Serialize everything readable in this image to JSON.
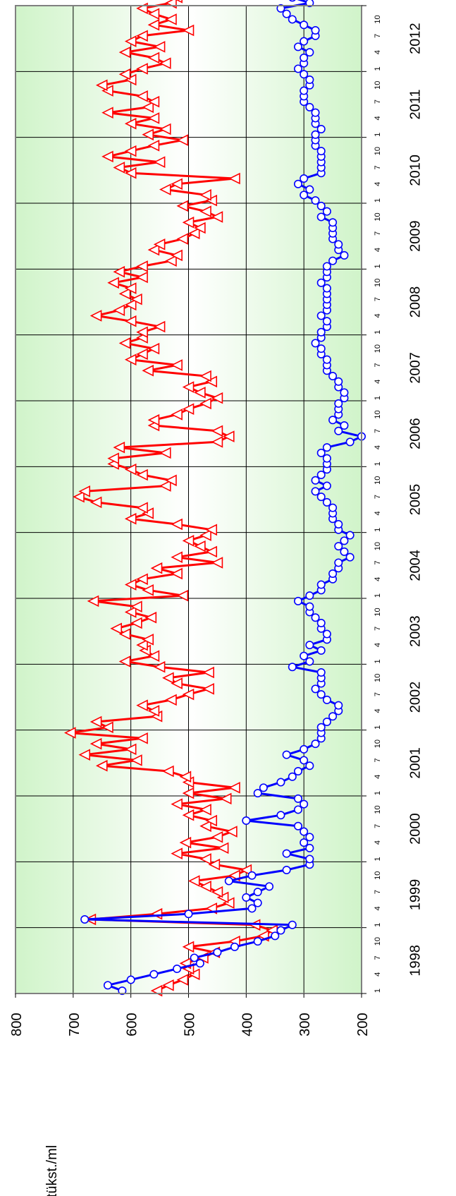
{
  "chart_data": {
    "type": "line",
    "title": "",
    "ylabel": "tükst./ml",
    "ylim": [
      200,
      800
    ],
    "y_ticks": [
      "800",
      "700",
      "600",
      "500",
      "400",
      "300",
      "200"
    ],
    "years": [
      "1998",
      "1999",
      "2000",
      "2001",
      "2002",
      "2003",
      "2004",
      "2005",
      "2006",
      "2007",
      "2008",
      "2009",
      "2010",
      "2011",
      "2012"
    ],
    "month_ticks": [
      "1",
      "4",
      "7",
      "10"
    ],
    "grid": true,
    "legend": "none",
    "colors": {
      "red": "#ff0000",
      "blue": "#0000ff",
      "grid": "#000000",
      "frame": "#808080",
      "band": "#c8f2c0"
    },
    "series": [
      {
        "color": "#ff0000",
        "marker": "triangle",
        "values": [
          555,
          535,
          510,
          490,
          500,
          505,
          475,
          455,
          500,
          420,
          370,
          355,
          385,
          670,
          555,
          460,
          430,
          440,
          450,
          470,
          490,
          420,
          400,
          455,
          470,
          520,
          440,
          505,
          450,
          425,
          470,
          460,
          500,
          470,
          520,
          435,
          500,
          420,
          500,
          505,
          535,
          650,
          590,
          680,
          600,
          660,
          580,
          705,
          640,
          660,
          555,
          560,
          580,
          530,
          500,
          465,
          520,
          535,
          465,
          550,
          610,
          560,
          575,
          580,
          570,
          610,
          625,
          590,
          565,
          600,
          590,
          665,
          510,
          570,
          600,
          580,
          520,
          555,
          450,
          520,
          460,
          480,
          500,
          470,
          460,
          520,
          600,
          570,
          580,
          660,
          690,
          680,
          540,
          530,
          580,
          600,
          630,
          630,
          540,
          620,
          450,
          430,
          450,
          560,
          560,
          520,
          500,
          470,
          450,
          480,
          500,
          460,
          470,
          570,
          520,
          600,
          580,
          560,
          610,
          580,
          580,
          550,
          600,
          660,
          620,
          600,
          590,
          610,
          600,
          630,
          580,
          620,
          580,
          530,
          520,
          560,
          550,
          510,
          490,
          480,
          500,
          450,
          470,
          510,
          460,
          470,
          540,
          520,
          420,
          600,
          620,
          550,
          640,
          600,
          560,
          510,
          570,
          540,
          600,
          560,
          640,
          570,
          560,
          580,
          640,
          650,
          600,
          610,
          580,
          540,
          560,
          610,
          550,
          600,
          580,
          500,
          560,
          530,
          560,
          580,
          530,
          520,
          540,
          570,
          530,
          580,
          560,
          600,
          560,
          580,
          600,
          580,
          590,
          570,
          560,
          540,
          560,
          560,
          580,
          580,
          560
        ]
      },
      {
        "color": "#0000ff",
        "marker": "circle",
        "values": [
          615,
          640,
          600,
          560,
          520,
          480,
          490,
          450,
          420,
          380,
          350,
          340,
          320,
          680,
          500,
          390,
          380,
          400,
          380,
          360,
          430,
          390,
          330,
          290,
          290,
          330,
          290,
          300,
          290,
          300,
          310,
          400,
          340,
          310,
          300,
          310,
          380,
          370,
          340,
          320,
          310,
          290,
          300,
          330,
          300,
          280,
          270,
          270,
          270,
          260,
          250,
          240,
          240,
          260,
          270,
          280,
          270,
          270,
          270,
          320,
          290,
          300,
          270,
          290,
          260,
          260,
          270,
          270,
          280,
          290,
          290,
          310,
          290,
          270,
          270,
          250,
          250,
          240,
          240,
          220,
          230,
          240,
          230,
          220,
          240,
          240,
          250,
          250,
          250,
          260,
          270,
          280,
          260,
          280,
          270,
          260,
          260,
          260,
          270,
          260,
          220,
          200,
          240,
          230,
          250,
          240,
          240,
          240,
          230,
          230,
          240,
          240,
          250,
          260,
          260,
          260,
          270,
          270,
          280,
          270,
          270,
          260,
          260,
          270,
          260,
          260,
          260,
          260,
          260,
          270,
          260,
          260,
          260,
          250,
          230,
          240,
          240,
          250,
          250,
          250,
          250,
          270,
          260,
          270,
          280,
          300,
          290,
          310,
          300,
          270,
          270,
          270,
          270,
          270,
          280,
          280,
          280,
          270,
          280,
          280,
          280,
          290,
          300,
          300,
          300,
          290,
          290,
          300,
          310,
          300,
          300,
          290,
          310,
          300,
          280,
          280,
          300,
          320,
          330,
          340,
          290,
          320,
          310,
          300,
          300,
          290,
          280,
          280,
          300,
          300,
          290,
          310,
          320,
          330,
          320,
          310,
          290,
          280,
          280,
          270,
          260
        ]
      }
    ]
  }
}
